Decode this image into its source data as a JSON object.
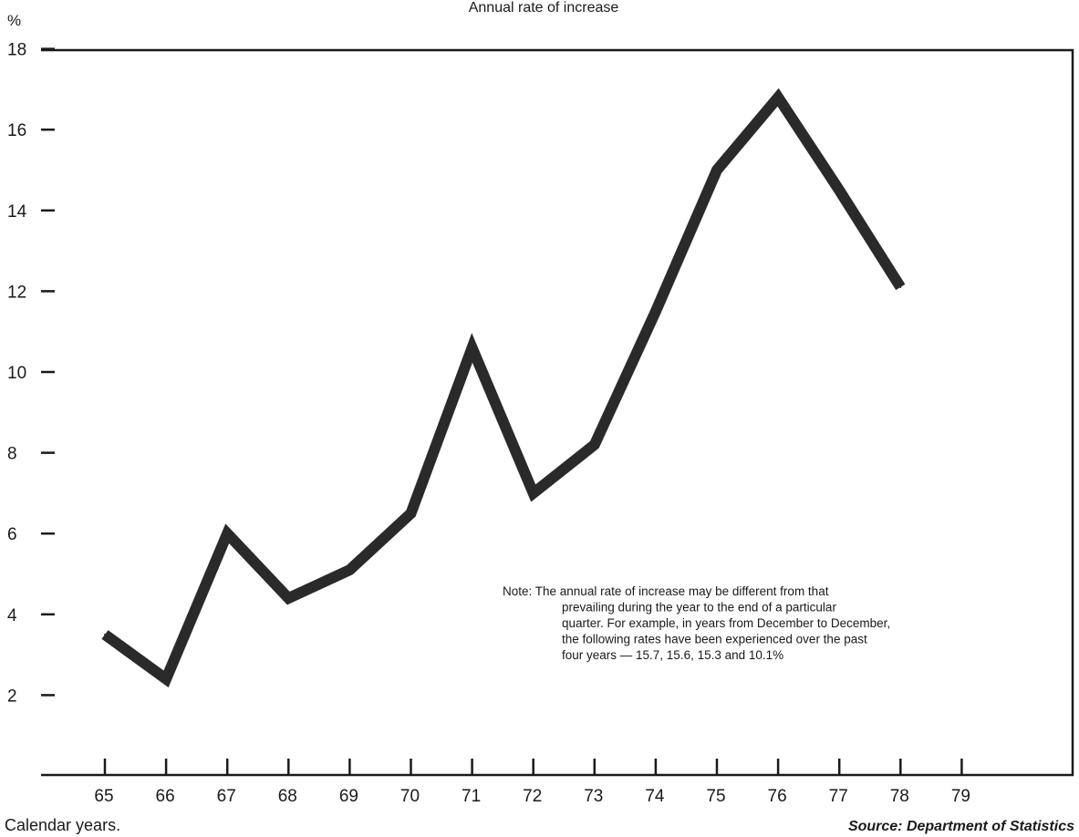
{
  "chart_data": {
    "type": "line",
    "title": "Annual rate of increase",
    "ylabel": "%",
    "xlabel": "Calendar years.",
    "source": "Source: Department of Statistics",
    "ylim": [
      0,
      18
    ],
    "xlim": [
      65,
      79
    ],
    "y_ticks": [
      "18",
      "16",
      "14",
      "12",
      "10",
      "8",
      "6",
      "4",
      "2"
    ],
    "x_ticks": [
      "65",
      "66",
      "67",
      "68",
      "69",
      "70",
      "71",
      "72",
      "73",
      "74",
      "75",
      "76",
      "77",
      "78",
      "79"
    ],
    "x": [
      65,
      66,
      67,
      68,
      69,
      70,
      71,
      72,
      73,
      74,
      75,
      76,
      77,
      78
    ],
    "series": [
      {
        "values": [
          3.5,
          2.4,
          6.0,
          4.4,
          5.1,
          6.5,
          10.6,
          7.0,
          8.2,
          11.5,
          15.0,
          16.8,
          14.5,
          12.1
        ]
      }
    ],
    "grid": false,
    "note": [
      "Note: The annual rate of increase may be different from that",
      "prevailing during the year to the end of a particular",
      "quarter. For example, in years from December to December,",
      "the following rates have been experienced over the past",
      "four years — 15.7, 15.6, 15.3 and 10.1%"
    ],
    "line_color": "#2a2a2a"
  }
}
